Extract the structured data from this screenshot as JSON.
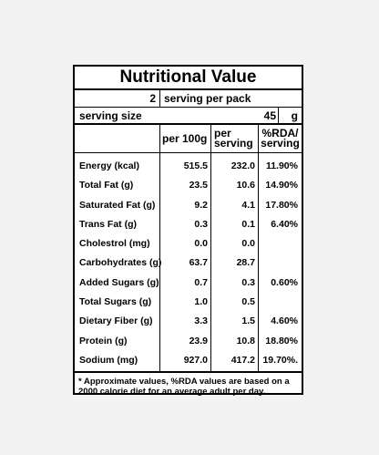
{
  "title": "Nutritional Value",
  "servings_per_pack": {
    "qty": "2",
    "label": "serving per pack"
  },
  "serving_size": {
    "label": "serving size",
    "value": "45",
    "unit": "g"
  },
  "columns": {
    "per100": "per 100g",
    "per_serving_line1": "per",
    "per_serving_line2": "serving",
    "rda_line1": "%RDA/",
    "rda_line2": "serving"
  },
  "nutrients": [
    {
      "name": "Energy (kcal)",
      "per100": "515.5",
      "serving": "232.0",
      "rda": "11.90%"
    },
    {
      "name": "Total Fat (g)",
      "per100": "23.5",
      "serving": "10.6",
      "rda": "14.90%"
    },
    {
      "name": "Saturated Fat (g)",
      "per100": "9.2",
      "serving": "4.1",
      "rda": "17.80%"
    },
    {
      "name": "Trans Fat (g)",
      "per100": "0.3",
      "serving": "0.1",
      "rda": "6.40%"
    },
    {
      "name": "Cholestrol (mg)",
      "per100": "0.0",
      "serving": "0.0",
      "rda": ""
    },
    {
      "name": "Carbohydrates (g)",
      "per100": "63.7",
      "serving": "28.7",
      "rda": ""
    },
    {
      "name": "Added Sugars (g)",
      "per100": "0.7",
      "serving": "0.3",
      "rda": "0.60%"
    },
    {
      "name": "Total Sugars (g)",
      "per100": "1.0",
      "serving": "0.5",
      "rda": ""
    },
    {
      "name": "Dietary Fiber (g)",
      "per100": "3.3",
      "serving": "1.5",
      "rda": "4.60%"
    },
    {
      "name": "Protein (g)",
      "per100": "23.9",
      "serving": "10.8",
      "rda": "18.80%"
    },
    {
      "name": "Sodium (mg)",
      "per100": "927.0",
      "serving": "417.2",
      "rda": "19.70%."
    }
  ],
  "footnote": "* Approximate values, %RDA values are based on a 2000 calorie diet for an average adult per day."
}
